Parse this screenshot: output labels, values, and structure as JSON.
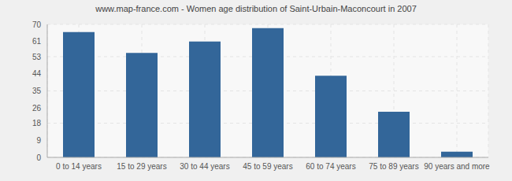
{
  "chart_data": {
    "type": "bar",
    "title": "www.map-france.com - Women age distribution of Saint-Urbain-Maconcourt in 2007",
    "categories": [
      "0 to 14 years",
      "15 to 29 years",
      "30 to 44 years",
      "45 to 59 years",
      "60 to 74 years",
      "75 to 89 years",
      "90 years and more"
    ],
    "values": [
      66,
      55,
      61,
      68,
      43,
      24,
      3
    ],
    "color": "#336699",
    "ylim": [
      0,
      70
    ],
    "yticks": [
      0,
      9,
      18,
      26,
      35,
      44,
      53,
      61,
      70
    ],
    "grid": true
  }
}
